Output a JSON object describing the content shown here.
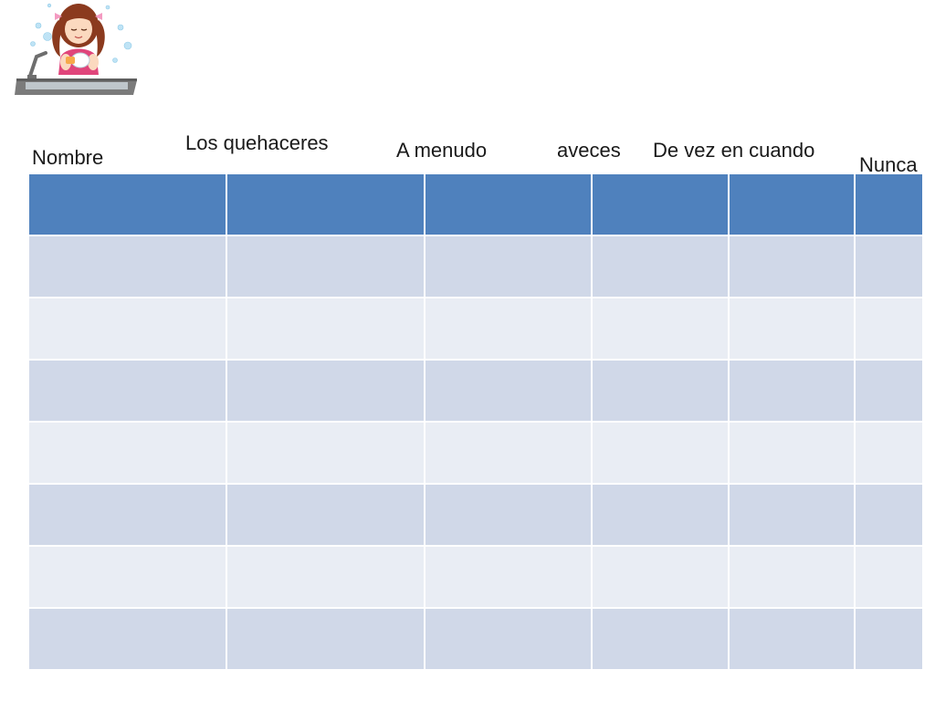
{
  "slide": {
    "illustration": "girl-washing-dishes-at-sink",
    "column_labels": [
      "Nombre",
      "Los quehaceres",
      "A menudo",
      "aveces",
      "De vez en cuando",
      "Nunca"
    ],
    "table": {
      "columns": 6,
      "header_rows": 1,
      "body_rows": 7,
      "cells": [
        [
          "",
          "",
          "",
          "",
          "",
          ""
        ],
        [
          "",
          "",
          "",
          "",
          "",
          ""
        ],
        [
          "",
          "",
          "",
          "",
          "",
          ""
        ],
        [
          "",
          "",
          "",
          "",
          "",
          ""
        ],
        [
          "",
          "",
          "",
          "",
          "",
          ""
        ],
        [
          "",
          "",
          "",
          "",
          "",
          ""
        ],
        [
          "",
          "",
          "",
          "",
          "",
          ""
        ],
        [
          "",
          "",
          "",
          "",
          "",
          ""
        ]
      ]
    },
    "colors": {
      "header": "#4f81bd",
      "band_dark": "#d0d8e8",
      "band_light": "#e9edf4"
    }
  }
}
